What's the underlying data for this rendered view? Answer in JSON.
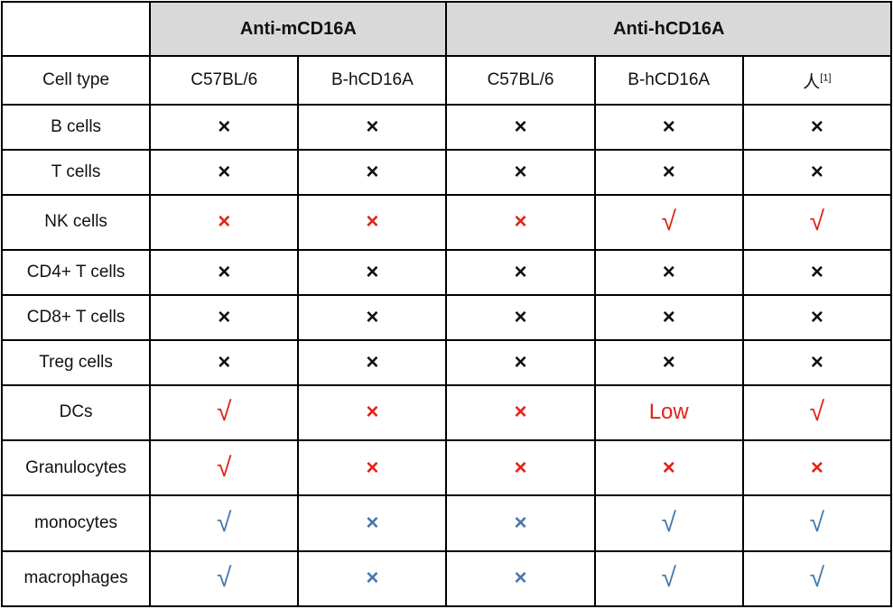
{
  "colors": {
    "black": "#111111",
    "red": "#e02419",
    "blue": "#4578ad",
    "header_bg": "#d9d9d9",
    "border": "#000000"
  },
  "table": {
    "group_header": {
      "anti_m": "Anti-mCD16A",
      "anti_h": "Anti-hCD16A"
    },
    "column_headers": [
      "Cell type",
      "C57BL/6",
      "B-hCD16A",
      "C57BL/6",
      "B-hCD16A",
      "人"
    ],
    "human_superscript": "[1]",
    "rows": [
      {
        "cell_type": "B cells",
        "values": [
          {
            "symbol": "×",
            "color": "black"
          },
          {
            "symbol": "×",
            "color": "black"
          },
          {
            "symbol": "×",
            "color": "black"
          },
          {
            "symbol": "×",
            "color": "black"
          },
          {
            "symbol": "×",
            "color": "black"
          }
        ]
      },
      {
        "cell_type": "T cells",
        "values": [
          {
            "symbol": "×",
            "color": "black"
          },
          {
            "symbol": "×",
            "color": "black"
          },
          {
            "symbol": "×",
            "color": "black"
          },
          {
            "symbol": "×",
            "color": "black"
          },
          {
            "symbol": "×",
            "color": "black"
          }
        ]
      },
      {
        "cell_type": "NK cells",
        "values": [
          {
            "symbol": "×",
            "color": "red"
          },
          {
            "symbol": "×",
            "color": "red"
          },
          {
            "symbol": "×",
            "color": "red"
          },
          {
            "symbol": "√",
            "color": "red"
          },
          {
            "symbol": "√",
            "color": "red"
          }
        ]
      },
      {
        "cell_type": "CD4+ T cells",
        "values": [
          {
            "symbol": "×",
            "color": "black"
          },
          {
            "symbol": "×",
            "color": "black"
          },
          {
            "symbol": "×",
            "color": "black"
          },
          {
            "symbol": "×",
            "color": "black"
          },
          {
            "symbol": "×",
            "color": "black"
          }
        ]
      },
      {
        "cell_type": "CD8+ T cells",
        "values": [
          {
            "symbol": "×",
            "color": "black"
          },
          {
            "symbol": "×",
            "color": "black"
          },
          {
            "symbol": "×",
            "color": "black"
          },
          {
            "symbol": "×",
            "color": "black"
          },
          {
            "symbol": "×",
            "color": "black"
          }
        ]
      },
      {
        "cell_type": "Treg cells",
        "values": [
          {
            "symbol": "×",
            "color": "black"
          },
          {
            "symbol": "×",
            "color": "black"
          },
          {
            "symbol": "×",
            "color": "black"
          },
          {
            "symbol": "×",
            "color": "black"
          },
          {
            "symbol": "×",
            "color": "black"
          }
        ]
      },
      {
        "cell_type": "DCs",
        "values": [
          {
            "symbol": "√",
            "color": "red"
          },
          {
            "symbol": "×",
            "color": "red"
          },
          {
            "symbol": "×",
            "color": "red"
          },
          {
            "symbol": "Low",
            "color": "red"
          },
          {
            "symbol": "√",
            "color": "red"
          }
        ]
      },
      {
        "cell_type": "Granulocytes",
        "values": [
          {
            "symbol": "√",
            "color": "red"
          },
          {
            "symbol": "×",
            "color": "red"
          },
          {
            "symbol": "×",
            "color": "red"
          },
          {
            "symbol": "×",
            "color": "red"
          },
          {
            "symbol": "×",
            "color": "red"
          }
        ]
      },
      {
        "cell_type": "monocytes",
        "values": [
          {
            "symbol": "√",
            "color": "blue"
          },
          {
            "symbol": "×",
            "color": "blue"
          },
          {
            "symbol": "×",
            "color": "blue"
          },
          {
            "symbol": "√",
            "color": "blue"
          },
          {
            "symbol": "√",
            "color": "blue"
          }
        ]
      },
      {
        "cell_type": "macrophages",
        "values": [
          {
            "symbol": "√",
            "color": "blue"
          },
          {
            "symbol": "×",
            "color": "blue"
          },
          {
            "symbol": "×",
            "color": "blue"
          },
          {
            "symbol": "√",
            "color": "blue"
          },
          {
            "symbol": "√",
            "color": "blue"
          }
        ]
      }
    ]
  }
}
